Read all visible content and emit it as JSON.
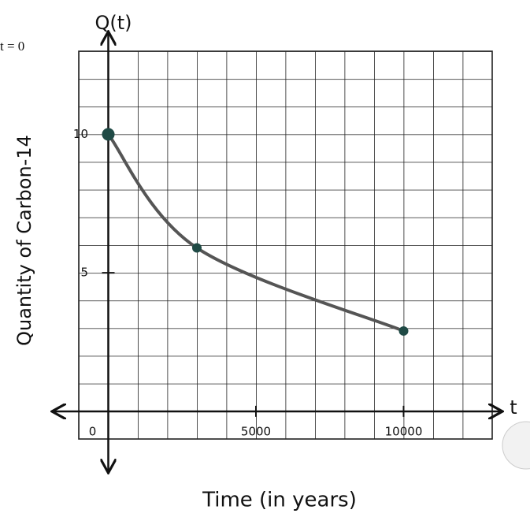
{
  "chart_data": {
    "type": "line",
    "title": "Q(t)",
    "x_label": "Time (in years)",
    "x_axis_name": "t",
    "y_label": "Quantity of Carbon-14",
    "annotation": "t = 0",
    "x": [
      0,
      3000,
      10000
    ],
    "series": [
      {
        "name": "Q(t)",
        "color": "#555555",
        "marker_color": "#1f4a45",
        "values": [
          10,
          5.9,
          2.9
        ]
      }
    ],
    "xlim": [
      -1000,
      13000
    ],
    "ylim": [
      -1,
      13
    ],
    "xticks": [
      0,
      5000,
      10000
    ],
    "yticks": [
      5,
      10
    ],
    "grid": true
  }
}
